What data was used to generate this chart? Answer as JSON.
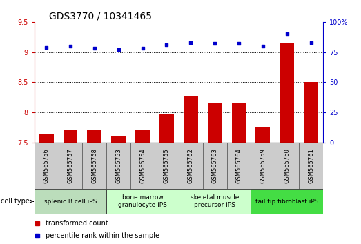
{
  "title": "GDS3770 / 10341465",
  "samples": [
    "GSM565756",
    "GSM565757",
    "GSM565758",
    "GSM565753",
    "GSM565754",
    "GSM565755",
    "GSM565762",
    "GSM565763",
    "GSM565764",
    "GSM565759",
    "GSM565760",
    "GSM565761"
  ],
  "transformed_count": [
    7.65,
    7.72,
    7.72,
    7.6,
    7.72,
    7.98,
    8.28,
    8.15,
    8.15,
    7.76,
    9.15,
    8.5
  ],
  "percentile_rank": [
    79,
    80,
    78,
    77,
    78,
    81,
    83,
    82,
    82,
    80,
    90,
    83
  ],
  "ylim_left": [
    7.5,
    9.5
  ],
  "ylim_right": [
    0,
    100
  ],
  "yticks_left": [
    7.5,
    8.0,
    8.5,
    9.0,
    9.5
  ],
  "yticks_right": [
    0,
    25,
    50,
    75,
    100
  ],
  "ytick_labels_left": [
    "7.5",
    "8",
    "8.5",
    "9",
    "9.5"
  ],
  "ytick_labels_right": [
    "0",
    "25",
    "50",
    "75",
    "100%"
  ],
  "bar_color": "#cc0000",
  "dot_color": "#0000cc",
  "grid_color": "#000000",
  "cell_type_groups": [
    {
      "label": "splenic B cell iPS",
      "start": 0,
      "end": 2,
      "color": "#bbddbb"
    },
    {
      "label": "bone marrow\ngranulocyte iPS",
      "start": 3,
      "end": 5,
      "color": "#ccffcc"
    },
    {
      "label": "skeletal muscle\nprecursor iPS",
      "start": 6,
      "end": 8,
      "color": "#ccffcc"
    },
    {
      "label": "tail tip fibroblast iPS",
      "start": 9,
      "end": 11,
      "color": "#44dd44"
    }
  ],
  "legend_items": [
    {
      "label": "transformed count",
      "color": "#cc0000"
    },
    {
      "label": "percentile rank within the sample",
      "color": "#0000cc"
    }
  ],
  "sample_box_color": "#cccccc",
  "title_fontsize": 10,
  "tick_fontsize": 7,
  "cell_type_fontsize": 6.5,
  "sample_fontsize": 6,
  "legend_fontsize": 7
}
